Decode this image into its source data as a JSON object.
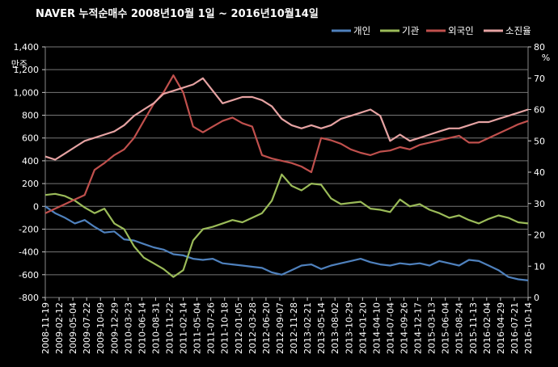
{
  "chart_data": {
    "type": "line",
    "title": "NAVER 누적순매수   2008년10월 1일 ~ 2016년10월14일",
    "ylabel_left": "만주",
    "ylabel_right": "%",
    "ylim_left": [
      -800,
      1400
    ],
    "ylim_right": [
      0,
      80
    ],
    "yticks_left": [
      "1,400",
      "1,200",
      "1,000",
      "800",
      "600",
      "400",
      "200",
      "0",
      "-200",
      "-400",
      "-600",
      "-800"
    ],
    "yticks_right": [
      "80",
      "70",
      "60",
      "50",
      "40",
      "30",
      "20",
      "10",
      "0"
    ],
    "x_labels": [
      "2008-11-19",
      "2009-02-12",
      "2009-05-04",
      "2009-07-22",
      "2009-10-09",
      "2009-12-29",
      "2010-03-23",
      "2010-06-14",
      "2010-08-31",
      "2010-11-22",
      "2011-02-14",
      "2011-05-04",
      "2011-07-26",
      "2011-10-18",
      "2012-01-05",
      "2012-03-28",
      "2012-06-20",
      "2012-09-07",
      "2012-11-28",
      "2013-02-21",
      "2013-05-14",
      "2013-08-02",
      "2013-10-29",
      "2014-01-20",
      "2014-04-10",
      "2014-07-04",
      "2014-09-26",
      "2014-12-17",
      "2015-03-13",
      "2015-06-04",
      "2015-08-24",
      "2015-11-13",
      "2016-02-04",
      "2016-04-29",
      "2016-07-21",
      "2016-10-14"
    ],
    "legend_position": "top-right",
    "series": [
      {
        "name": "개인",
        "color": "#4f81bd",
        "axis": "left",
        "values": [
          0,
          -60,
          -100,
          -150,
          -120,
          -180,
          -230,
          -220,
          -290,
          -300,
          -330,
          -360,
          -380,
          -420,
          -430,
          -460,
          -470,
          -460,
          -500,
          -510,
          -520,
          -530,
          -540,
          -580,
          -600,
          -560,
          -520,
          -510,
          -550,
          -520,
          -500,
          -480,
          -460,
          -490,
          -510,
          -520,
          -500,
          -510,
          -500,
          -520,
          -480,
          -500,
          -520,
          -470,
          -480,
          -520,
          -560,
          -620,
          -640,
          -650
        ]
      },
      {
        "name": "기관",
        "color": "#9bbb59",
        "axis": "left",
        "values": [
          100,
          110,
          90,
          50,
          -10,
          -60,
          -20,
          -150,
          -200,
          -350,
          -450,
          -500,
          -550,
          -620,
          -560,
          -300,
          -200,
          -180,
          -150,
          -120,
          -140,
          -100,
          -60,
          50,
          280,
          180,
          140,
          200,
          190,
          70,
          20,
          30,
          40,
          -20,
          -30,
          -50,
          60,
          0,
          20,
          -30,
          -60,
          -100,
          -80,
          -120,
          -150,
          -110,
          -80,
          -100,
          -140,
          -150
        ]
      },
      {
        "name": "외국인",
        "color": "#c0504d",
        "axis": "left",
        "values": [
          -60,
          -20,
          20,
          60,
          100,
          320,
          380,
          450,
          500,
          600,
          750,
          900,
          1000,
          1150,
          1000,
          700,
          650,
          700,
          750,
          780,
          730,
          700,
          450,
          420,
          400,
          380,
          350,
          300,
          600,
          580,
          550,
          500,
          470,
          450,
          480,
          490,
          520,
          500,
          540,
          560,
          580,
          600,
          620,
          560,
          560,
          600,
          640,
          680,
          720,
          750
        ]
      },
      {
        "name": "소진율",
        "color": "#e6a3a3",
        "axis": "right",
        "values": [
          45,
          44,
          46,
          48,
          50,
          51,
          52,
          53,
          55,
          58,
          60,
          62,
          65,
          66,
          67,
          68,
          70,
          66,
          62,
          63,
          64,
          64,
          63,
          61,
          57,
          55,
          54,
          55,
          54,
          55,
          57,
          58,
          59,
          60,
          58,
          50,
          52,
          50,
          51,
          52,
          53,
          54,
          54,
          55,
          56,
          56,
          57,
          58,
          59,
          60
        ]
      }
    ]
  }
}
